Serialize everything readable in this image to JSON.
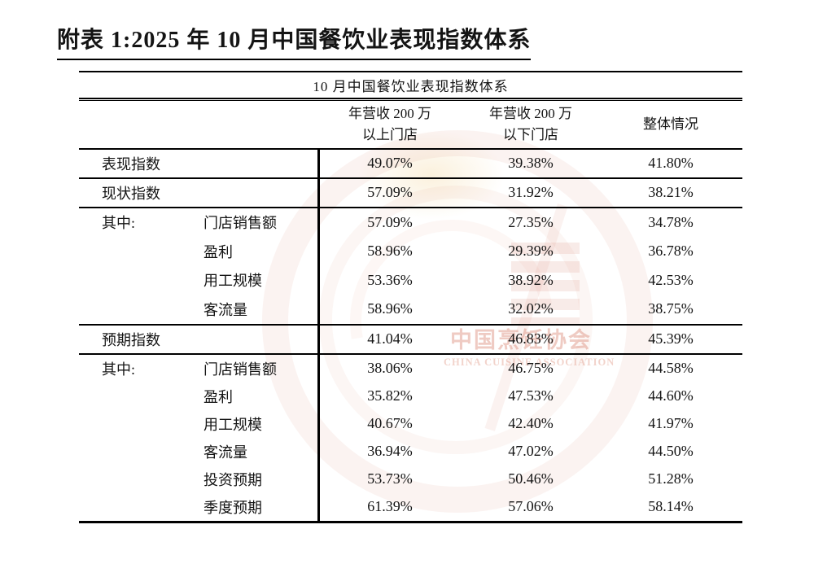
{
  "page_title": "附表 1:2025 年 10 月中国餐饮业表现指数体系",
  "table": {
    "caption": "10 月中国餐饮业表现指数体系",
    "col_headers": [
      {
        "line1": "年营收 200 万",
        "line2": "以上门店"
      },
      {
        "line1": "年营收 200 万",
        "line2": "以下门店"
      },
      {
        "label": "整体情况"
      }
    ],
    "groups": [
      {
        "label": "表现指数",
        "values": [
          "49.07%",
          "39.38%",
          "41.80%"
        ]
      },
      {
        "label": "现状指数",
        "values": [
          "57.09%",
          "31.92%",
          "38.21%"
        ]
      },
      {
        "label": "其中:",
        "items": [
          {
            "name": "门店销售额",
            "values": [
              "57.09%",
              "27.35%",
              "34.78%"
            ]
          },
          {
            "name": "盈利",
            "values": [
              "58.96%",
              "29.39%",
              "36.78%"
            ]
          },
          {
            "name": "用工规模",
            "values": [
              "53.36%",
              "38.92%",
              "42.53%"
            ]
          },
          {
            "name": "客流量",
            "values": [
              "58.96%",
              "32.02%",
              "38.75%"
            ]
          }
        ]
      },
      {
        "label": "预期指数",
        "values": [
          "41.04%",
          "46.83%",
          "45.39%"
        ]
      },
      {
        "label": "其中:",
        "items": [
          {
            "name": "门店销售额",
            "values": [
              "38.06%",
              "46.75%",
              "44.58%"
            ]
          },
          {
            "name": "盈利",
            "values": [
              "35.82%",
              "47.53%",
              "44.60%"
            ]
          },
          {
            "name": "用工规模",
            "values": [
              "40.67%",
              "42.40%",
              "41.97%"
            ]
          },
          {
            "name": "客流量",
            "values": [
              "36.94%",
              "47.02%",
              "44.50%"
            ]
          },
          {
            "name": "投资预期",
            "values": [
              "53.73%",
              "50.46%",
              "51.28%"
            ]
          },
          {
            "name": "季度预期",
            "values": [
              "61.39%",
              "57.06%",
              "58.14%"
            ]
          }
        ]
      }
    ]
  },
  "watermark": {
    "text": "中国烹饪协会",
    "subtext": "CHINA CUISINE ASSOCIATION",
    "color": "#db8c7a"
  },
  "colors": {
    "text": "#141414",
    "rule": "#000000",
    "watermark": "#db8c7a"
  }
}
